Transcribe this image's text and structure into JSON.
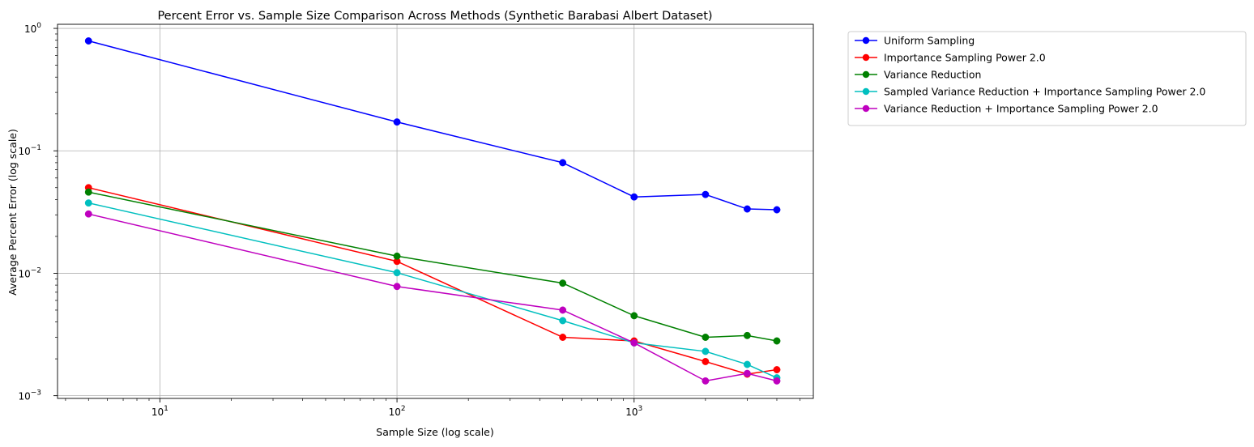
{
  "chart_data": {
    "type": "line",
    "title": "Percent Error vs. Sample Size Comparison Across Methods (Synthetic Barabasi Albert Dataset)",
    "xlabel": "Sample Size (log scale)",
    "ylabel": "Average Percent Error (log scale)",
    "xscale": "log",
    "yscale": "log",
    "xlim": [
      3.7,
      5700
    ],
    "ylim": [
      0.00095,
      1.08
    ],
    "x_ticks": [
      {
        "base": "10",
        "exp": "1",
        "value": 10
      },
      {
        "base": "10",
        "exp": "2",
        "value": 100
      },
      {
        "base": "10",
        "exp": "3",
        "value": 1000
      }
    ],
    "y_ticks": [
      {
        "base": "10",
        "exp": "−3",
        "value": 0.001
      },
      {
        "base": "10",
        "exp": "−2",
        "value": 0.01
      },
      {
        "base": "10",
        "exp": "−1",
        "value": 0.1
      },
      {
        "base": "10",
        "exp": "0",
        "value": 1
      }
    ],
    "grid": true,
    "legend_position": "outside-top-right",
    "x": [
      5,
      100,
      500,
      1000,
      2000,
      3000,
      4000
    ],
    "series": [
      {
        "name": "Uniform Sampling",
        "color": "#0000ff",
        "values": [
          0.79,
          0.172,
          0.08,
          0.042,
          0.044,
          0.0335,
          0.033
        ]
      },
      {
        "name": "Importance Sampling Power 2.0",
        "color": "#ff0000",
        "values": [
          0.05,
          0.0125,
          0.003,
          0.0028,
          0.0019,
          0.0015,
          0.00163
        ]
      },
      {
        "name": "Variance Reduction",
        "color": "#008000",
        "values": [
          0.046,
          0.0138,
          0.0083,
          0.0045,
          0.003,
          0.0031,
          0.0028
        ]
      },
      {
        "name": "Sampled Variance Reduction + Importance Sampling Power 2.0",
        "color": "#00bfbf",
        "values": [
          0.0375,
          0.0101,
          0.0041,
          0.0027,
          0.0023,
          0.0018,
          0.0014
        ]
      },
      {
        "name": "Variance Reduction + Importance Sampling Power 2.0",
        "color": "#bf00bf",
        "values": [
          0.0305,
          0.0078,
          0.005,
          0.0027,
          0.00132,
          0.00152,
          0.00132
        ]
      }
    ]
  }
}
